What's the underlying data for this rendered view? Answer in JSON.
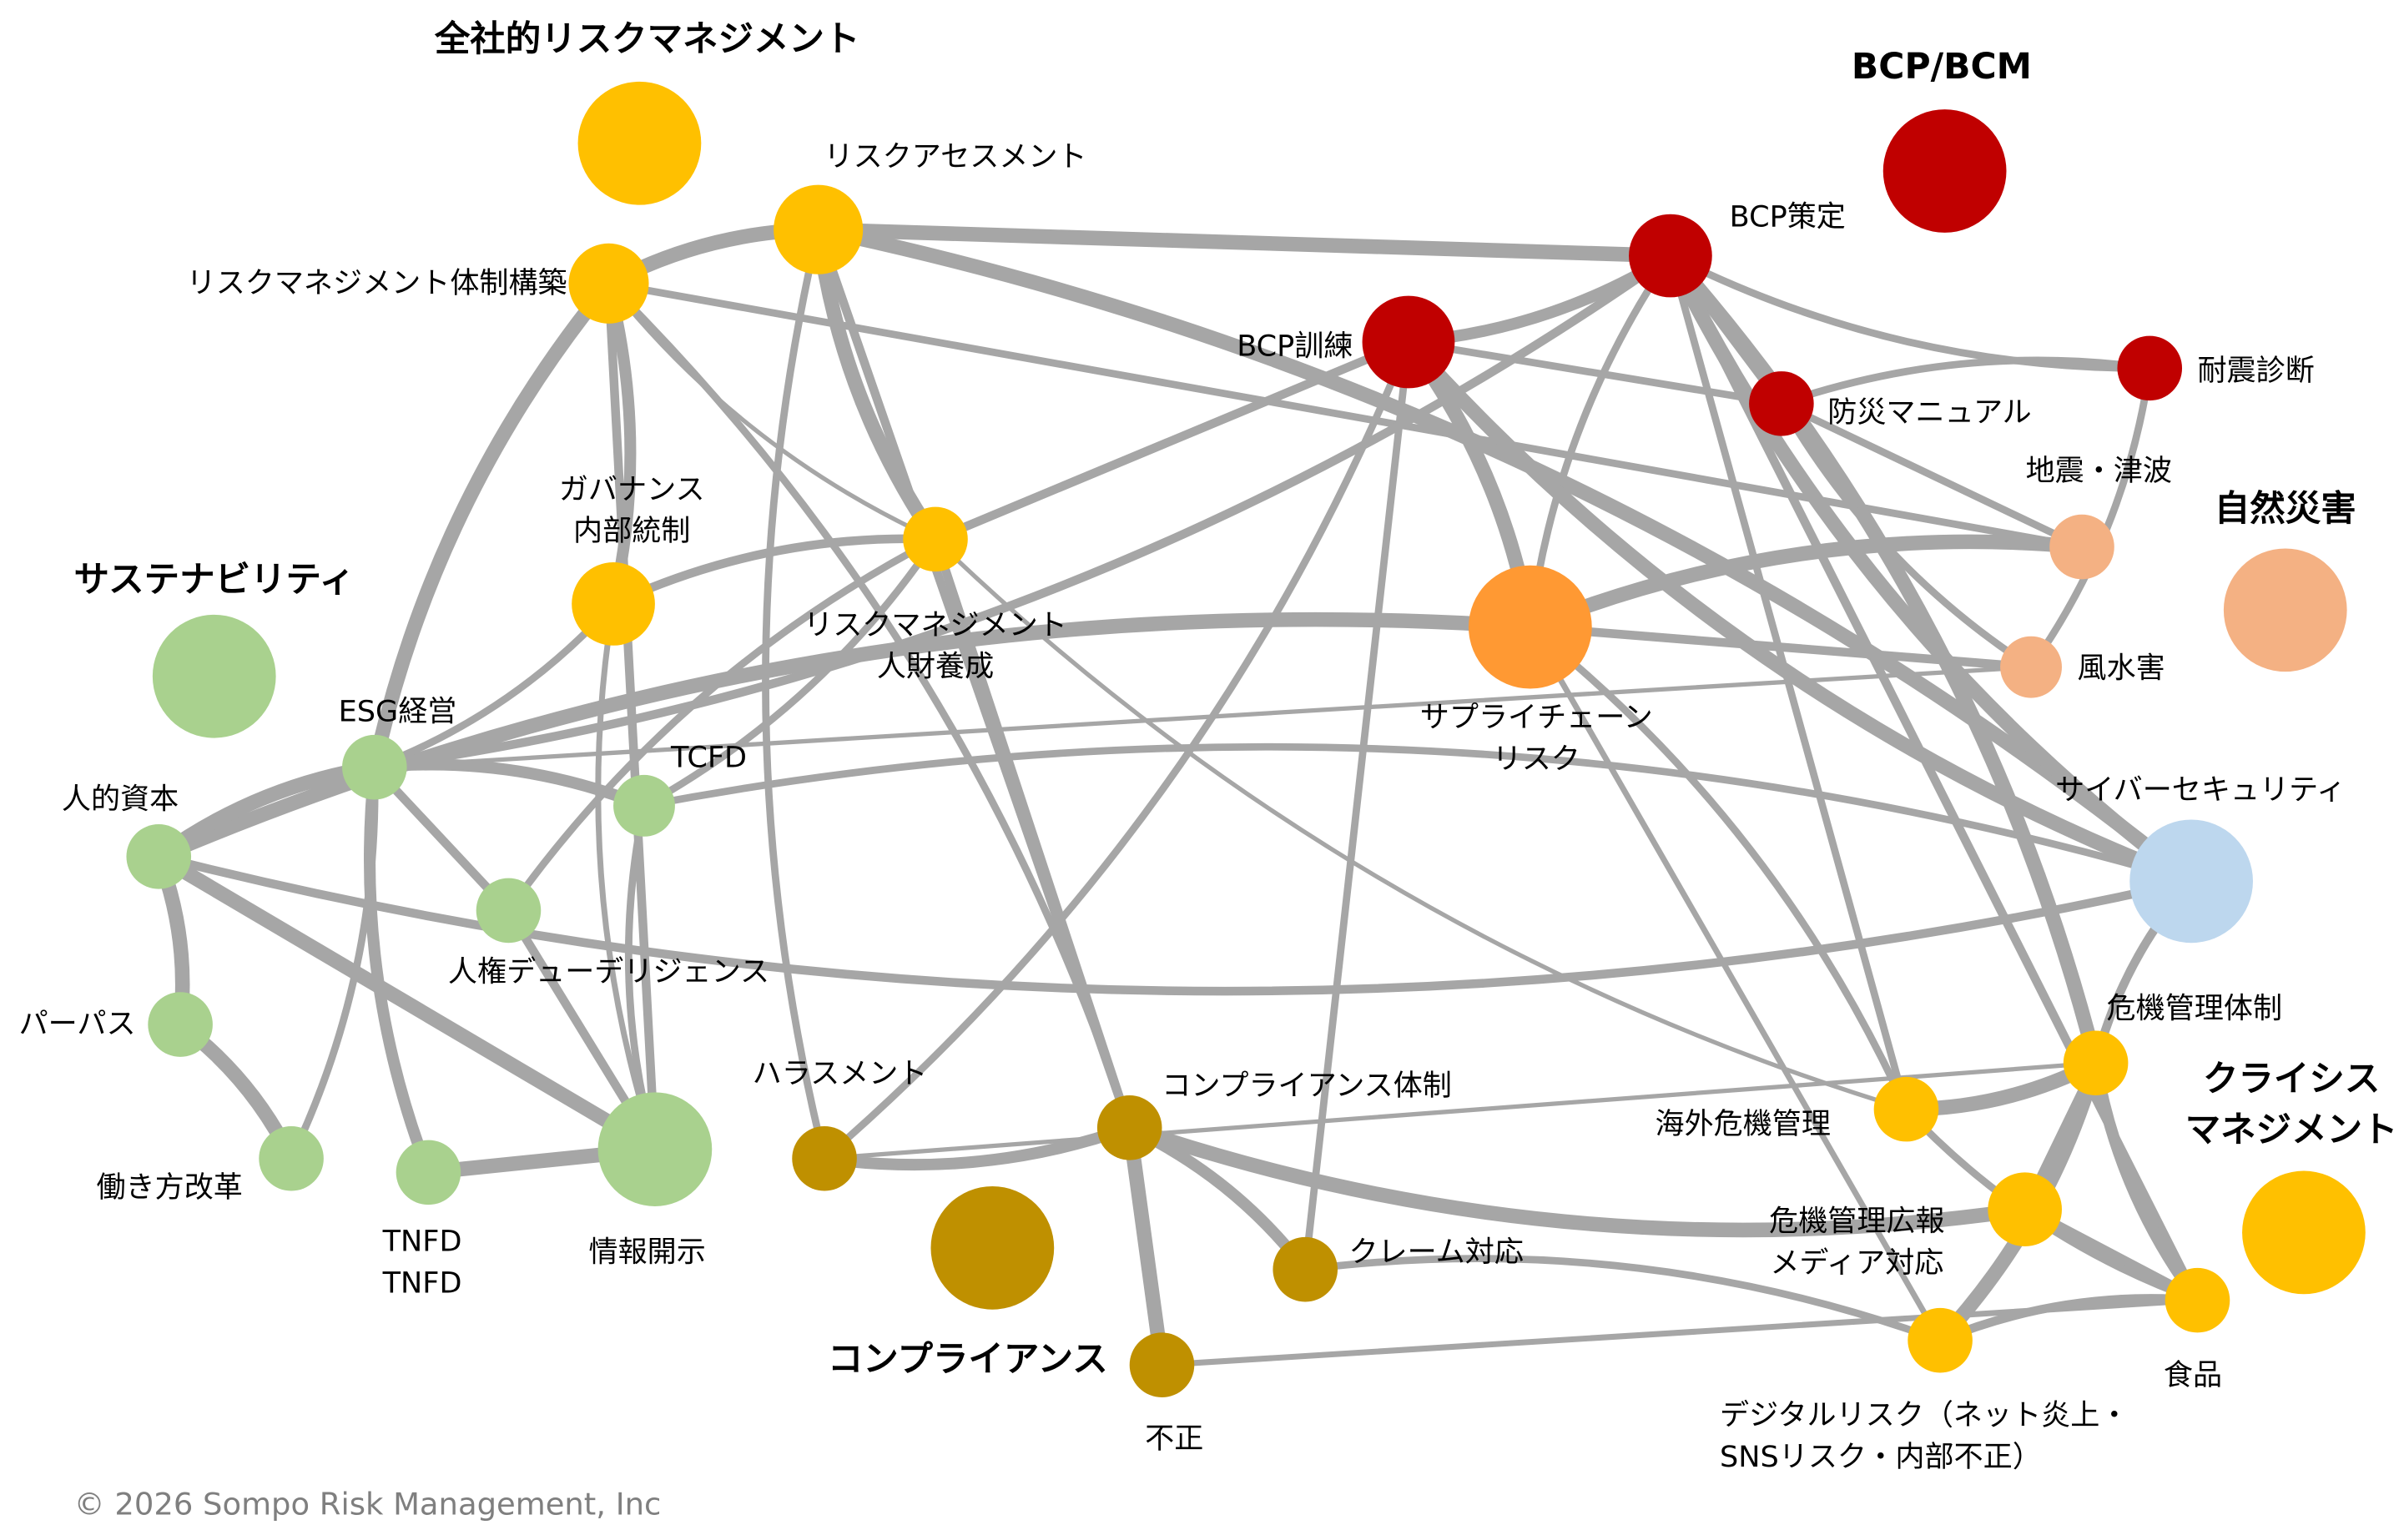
{
  "edge_color": "#A6A6A6",
  "groups": [
    {
      "id": "erm",
      "label": [
        "全社的リスクマネジメント"
      ],
      "color": "#FFC000"
    },
    {
      "id": "bcp",
      "label": [
        "BCP/BCM"
      ],
      "color": "#C00000"
    },
    {
      "id": "nat",
      "label": [
        "自然災害"
      ],
      "color": "#F4B183"
    },
    {
      "id": "sus",
      "label": [
        "サステナビリティ"
      ],
      "color": "#A9D18E"
    },
    {
      "id": "cmp",
      "label": [
        "コンプライアンス"
      ],
      "color": "#BF9000"
    },
    {
      "id": "cri",
      "label": [
        "クライシス",
        "マネジメント"
      ],
      "color": "#FFC000"
    }
  ],
  "nodes": [
    {
      "id": "rm_build",
      "label": [
        "リスクマネジメント体制構築"
      ],
      "color": "#FFC000"
    },
    {
      "id": "assess",
      "label": [
        "リスクアセスメント"
      ],
      "color": "#FFC000"
    },
    {
      "id": "gov",
      "label": [
        "ガバナンス",
        "内部統制"
      ],
      "color": "#FFC000"
    },
    {
      "id": "talent",
      "label": [
        "リスクマネジメント",
        "人財養成"
      ],
      "color": "#FFC000"
    },
    {
      "id": "bcp_plan",
      "label": [
        "BCP策定"
      ],
      "color": "#C00000"
    },
    {
      "id": "bcp_train",
      "label": [
        "BCP訓練"
      ],
      "color": "#C00000"
    },
    {
      "id": "manual",
      "label": [
        "防災マニュアル"
      ],
      "color": "#C00000"
    },
    {
      "id": "quake_diag",
      "label": [
        "耐震診断"
      ],
      "color": "#C00000"
    },
    {
      "id": "eq",
      "label": [
        "地震・津波"
      ],
      "color": "#F4B183"
    },
    {
      "id": "flood",
      "label": [
        "風水害"
      ],
      "color": "#F4B183"
    },
    {
      "id": "supply",
      "label": [
        "サプライチェーン",
        "リスク"
      ],
      "color": "#FF9933"
    },
    {
      "id": "esg",
      "label": [
        "ESG経営"
      ],
      "color": "#A9D18E"
    },
    {
      "id": "human",
      "label": [
        "人的資本"
      ],
      "color": "#A9D18E"
    },
    {
      "id": "tcfd",
      "label": [
        "TCFD"
      ],
      "color": "#A9D18E"
    },
    {
      "id": "hrdd",
      "label": [
        "人権デューデリジェンス"
      ],
      "color": "#A9D18E"
    },
    {
      "id": "purpose",
      "label": [
        "パーパス"
      ],
      "color": "#A9D18E"
    },
    {
      "id": "work",
      "label": [
        "働き方改革"
      ],
      "color": "#A9D18E"
    },
    {
      "id": "tnfd",
      "label": [
        "TNFD",
        "TNFD"
      ],
      "color": "#A9D18E"
    },
    {
      "id": "disclosure",
      "label": [
        "情報開示"
      ],
      "color": "#A9D18E"
    },
    {
      "id": "harass",
      "label": [
        "ハラスメント"
      ],
      "color": "#BF9000"
    },
    {
      "id": "comp_sys",
      "label": [
        "コンプライアンス体制"
      ],
      "color": "#BF9000"
    },
    {
      "id": "claim",
      "label": [
        "クレーム対応"
      ],
      "color": "#BF9000"
    },
    {
      "id": "fraud",
      "label": [
        "不正"
      ],
      "color": "#BF9000"
    },
    {
      "id": "cyber",
      "label": [
        "サイバーセキュリティ"
      ],
      "color": "#BDD7EE"
    },
    {
      "id": "overseas",
      "label": [
        "海外危機管理"
      ],
      "color": "#FFC000"
    },
    {
      "id": "crisis_sys",
      "label": [
        "危機管理体制"
      ],
      "color": "#FFC000"
    },
    {
      "id": "crisis_pr",
      "label": [
        "危機管理広報",
        "メディア対応"
      ],
      "color": "#FFC000"
    },
    {
      "id": "food",
      "label": [
        "食品"
      ],
      "color": "#FFC000"
    },
    {
      "id": "digital",
      "label": [
        "デジタルリスク（ネット炎上・",
        "SNSリスク・内部不正）"
      ],
      "color": "#FFC000"
    }
  ],
  "edges": [
    [
      "rm_build",
      "assess",
      10
    ],
    [
      "assess",
      "bcp_plan",
      10
    ],
    [
      "rm_build",
      "esg",
      10
    ],
    [
      "rm_build",
      "gov",
      8
    ],
    [
      "rm_build",
      "disclosure",
      6
    ],
    [
      "rm_build",
      "talent",
      3
    ],
    [
      "rm_build",
      "comp_sys",
      5
    ],
    [
      "rm_build",
      "eq",
      5
    ],
    [
      "assess",
      "talent",
      10
    ],
    [
      "assess",
      "cyber",
      10
    ],
    [
      "assess",
      "comp_sys",
      6
    ],
    [
      "assess",
      "harass",
      5
    ],
    [
      "gov",
      "talent",
      6
    ],
    [
      "talent",
      "bcp_train",
      6
    ],
    [
      "talent",
      "hrdd",
      5
    ],
    [
      "talent",
      "tcfd",
      5
    ],
    [
      "talent",
      "comp_sys",
      6
    ],
    [
      "talent",
      "overseas",
      3
    ],
    [
      "bcp_plan",
      "bcp_train",
      8
    ],
    [
      "bcp_plan",
      "manual",
      6
    ],
    [
      "bcp_plan",
      "quake_diag",
      5
    ],
    [
      "bcp_plan",
      "crisis_sys",
      10
    ],
    [
      "bcp_plan",
      "overseas",
      5
    ],
    [
      "bcp_plan",
      "supply",
      5
    ],
    [
      "bcp_plan",
      "esg",
      6
    ],
    [
      "bcp_plan",
      "food",
      6
    ],
    [
      "bcp_plan",
      "cyber",
      10
    ],
    [
      "bcp_train",
      "supply",
      10
    ],
    [
      "bcp_train",
      "manual",
      5
    ],
    [
      "bcp_train",
      "cyber",
      10
    ],
    [
      "bcp_train",
      "harass",
      5
    ],
    [
      "bcp_train",
      "claim",
      5
    ],
    [
      "quake_diag",
      "manual",
      5
    ],
    [
      "quake_diag",
      "flood",
      5
    ],
    [
      "manual",
      "eq",
      5
    ],
    [
      "manual",
      "flood",
      5
    ],
    [
      "supply",
      "eq",
      10
    ],
    [
      "supply",
      "flood",
      6
    ],
    [
      "supply",
      "human",
      10
    ],
    [
      "supply",
      "overseas",
      5
    ],
    [
      "supply",
      "digital",
      4
    ],
    [
      "esg",
      "human",
      10
    ],
    [
      "esg",
      "tcfd",
      8
    ],
    [
      "esg",
      "hrdd",
      6
    ],
    [
      "esg",
      "tnfd",
      8
    ],
    [
      "esg",
      "work",
      5
    ],
    [
      "esg",
      "flood",
      3
    ],
    [
      "esg",
      "gov",
      5
    ],
    [
      "human",
      "purpose",
      10
    ],
    [
      "human",
      "disclosure",
      10
    ],
    [
      "human",
      "cyber",
      6
    ],
    [
      "purpose",
      "work",
      10
    ],
    [
      "tnfd",
      "disclosure",
      10
    ],
    [
      "tcfd",
      "disclosure",
      5
    ],
    [
      "tcfd",
      "cyber",
      5
    ],
    [
      "hrdd",
      "disclosure",
      6
    ],
    [
      "harass",
      "comp_sys",
      8
    ],
    [
      "comp_sys",
      "claim",
      8
    ],
    [
      "comp_sys",
      "fraud",
      10
    ],
    [
      "comp_sys",
      "crisis_pr",
      10
    ],
    [
      "claim",
      "digital",
      5
    ],
    [
      "fraud",
      "food",
      4
    ],
    [
      "overseas",
      "crisis_sys",
      10
    ],
    [
      "crisis_sys",
      "cyber",
      6
    ],
    [
      "crisis_sys",
      "crisis_pr",
      6
    ],
    [
      "crisis_sys",
      "food",
      8
    ],
    [
      "crisis_sys",
      "digital",
      10
    ],
    [
      "crisis_pr",
      "food",
      8
    ],
    [
      "overseas",
      "food",
      5
    ],
    [
      "digital",
      "food",
      6
    ],
    [
      "harass",
      "crisis_sys",
      3
    ],
    [
      "gov",
      "disclosure",
      4
    ]
  ],
  "copyright": "© 2026 Sompo Risk Management, Inc"
}
